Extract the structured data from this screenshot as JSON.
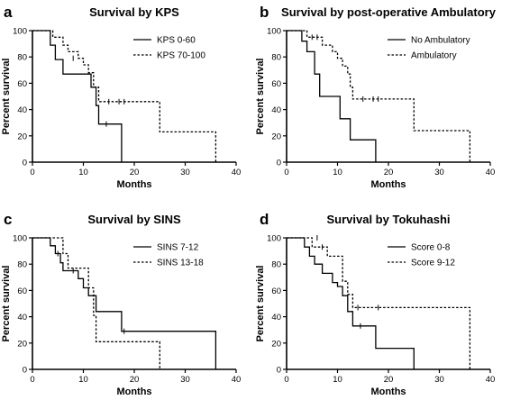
{
  "chart_data": [
    {
      "panel": "a",
      "type": "line",
      "title": "Survival by KPS",
      "xlabel": "Months",
      "ylabel": "Percent survival",
      "xlim": [
        0,
        40
      ],
      "ylim": [
        0,
        100
      ],
      "xticks": [
        0,
        10,
        20,
        30,
        40
      ],
      "yticks": [
        0,
        20,
        40,
        60,
        80,
        100
      ],
      "legend_position": "top-right",
      "series": [
        {
          "name": "KPS 0-60",
          "style": "solid",
          "steps": [
            [
              0,
              100
            ],
            [
              3.5,
              100
            ],
            [
              3.5,
              89
            ],
            [
              4.5,
              89
            ],
            [
              4.5,
              78
            ],
            [
              6,
              78
            ],
            [
              6,
              67
            ],
            [
              11.5,
              67
            ],
            [
              11.5,
              57
            ],
            [
              12.5,
              57
            ],
            [
              12.5,
              43
            ],
            [
              13,
              43
            ],
            [
              13,
              29
            ],
            [
              17.5,
              29
            ],
            [
              17.5,
              0
            ]
          ],
          "censors": [
            [
              14.5,
              29
            ]
          ]
        },
        {
          "name": "KPS 70-100",
          "style": "dashed",
          "steps": [
            [
              0,
              100
            ],
            [
              4,
              100
            ],
            [
              4,
              95
            ],
            [
              6,
              95
            ],
            [
              6,
              89
            ],
            [
              7,
              89
            ],
            [
              7,
              84
            ],
            [
              9,
              84
            ],
            [
              9,
              79
            ],
            [
              10,
              79
            ],
            [
              10,
              74
            ],
            [
              11,
              74
            ],
            [
              11,
              68
            ],
            [
              12,
              68
            ],
            [
              12,
              57
            ],
            [
              13,
              57
            ],
            [
              13,
              46
            ],
            [
              25,
              46
            ],
            [
              25,
              23
            ],
            [
              36,
              23
            ],
            [
              36,
              0
            ]
          ],
          "censors": [
            [
              8,
              79
            ],
            [
              15,
              46
            ],
            [
              17,
              46
            ],
            [
              18,
              46
            ]
          ]
        }
      ]
    },
    {
      "panel": "b",
      "type": "line",
      "title": "Survival by post-operative Ambulatory",
      "xlabel": "Months",
      "ylabel": "Percent survival",
      "xlim": [
        0,
        40
      ],
      "ylim": [
        0,
        100
      ],
      "xticks": [
        0,
        10,
        20,
        30,
        40
      ],
      "yticks": [
        0,
        20,
        40,
        60,
        80,
        100
      ],
      "legend_position": "top-right",
      "series": [
        {
          "name": "No Ambulatory",
          "style": "solid",
          "steps": [
            [
              0,
              100
            ],
            [
              3,
              100
            ],
            [
              3,
              92
            ],
            [
              4,
              92
            ],
            [
              4,
              84
            ],
            [
              5.5,
              84
            ],
            [
              5.5,
              67
            ],
            [
              6.5,
              67
            ],
            [
              6.5,
              50
            ],
            [
              10.5,
              50
            ],
            [
              10.5,
              33
            ],
            [
              12.5,
              33
            ],
            [
              12.5,
              17
            ],
            [
              17.5,
              17
            ],
            [
              17.5,
              0
            ]
          ],
          "censors": []
        },
        {
          "name": "Ambulatory",
          "style": "dashed",
          "steps": [
            [
              0,
              100
            ],
            [
              4,
              100
            ],
            [
              4,
              95
            ],
            [
              7,
              95
            ],
            [
              7,
              89
            ],
            [
              9,
              89
            ],
            [
              9,
              84
            ],
            [
              10,
              84
            ],
            [
              10,
              79
            ],
            [
              11,
              79
            ],
            [
              11,
              73
            ],
            [
              12,
              73
            ],
            [
              12,
              67
            ],
            [
              12.5,
              67
            ],
            [
              12.5,
              57
            ],
            [
              13,
              57
            ],
            [
              13,
              48
            ],
            [
              25,
              48
            ],
            [
              25,
              24
            ],
            [
              36,
              24
            ],
            [
              36,
              0
            ]
          ],
          "censors": [
            [
              5,
              95
            ],
            [
              6,
              95
            ],
            [
              15,
              48
            ],
            [
              17,
              48
            ],
            [
              18,
              48
            ]
          ]
        }
      ]
    },
    {
      "panel": "c",
      "type": "line",
      "title": "Survival by SINS",
      "xlabel": "Months",
      "ylabel": "Percent survival",
      "xlim": [
        0,
        40
      ],
      "ylim": [
        0,
        100
      ],
      "xticks": [
        0,
        10,
        20,
        30,
        40
      ],
      "yticks": [
        0,
        20,
        40,
        60,
        80,
        100
      ],
      "legend_position": "top-right",
      "series": [
        {
          "name": "SINS 7-12",
          "style": "solid",
          "steps": [
            [
              0,
              100
            ],
            [
              3.5,
              100
            ],
            [
              3.5,
              94
            ],
            [
              4.5,
              94
            ],
            [
              4.5,
              88
            ],
            [
              5.5,
              88
            ],
            [
              5.5,
              81
            ],
            [
              6,
              81
            ],
            [
              6,
              75
            ],
            [
              9,
              75
            ],
            [
              9,
              69
            ],
            [
              10,
              69
            ],
            [
              10,
              62
            ],
            [
              11,
              62
            ],
            [
              11,
              56
            ],
            [
              12.5,
              56
            ],
            [
              12.5,
              44
            ],
            [
              17.5,
              44
            ],
            [
              17.5,
              29
            ],
            [
              36,
              29
            ],
            [
              36,
              0
            ]
          ],
          "censors": [
            [
              5,
              88
            ],
            [
              8,
              75
            ],
            [
              18,
              29
            ]
          ]
        },
        {
          "name": "SINS 13-18",
          "style": "dashed",
          "steps": [
            [
              0,
              100
            ],
            [
              6,
              100
            ],
            [
              6,
              88
            ],
            [
              7,
              88
            ],
            [
              7,
              77
            ],
            [
              11,
              77
            ],
            [
              11,
              62
            ],
            [
              12,
              62
            ],
            [
              12,
              41
            ],
            [
              12.5,
              41
            ],
            [
              12.5,
              21
            ],
            [
              25,
              21
            ],
            [
              25,
              0
            ]
          ],
          "censors": []
        }
      ]
    },
    {
      "panel": "d",
      "type": "line",
      "title": "Survival by Tokuhashi",
      "xlabel": "Months",
      "ylabel": "Percent survival",
      "xlim": [
        0,
        40
      ],
      "ylim": [
        0,
        100
      ],
      "xticks": [
        0,
        10,
        20,
        30,
        40
      ],
      "yticks": [
        0,
        20,
        40,
        60,
        80,
        100
      ],
      "legend_position": "top-right",
      "series": [
        {
          "name": "Score 0-8",
          "style": "solid",
          "steps": [
            [
              0,
              100
            ],
            [
              3.5,
              100
            ],
            [
              3.5,
              93
            ],
            [
              4.5,
              93
            ],
            [
              4.5,
              86
            ],
            [
              5.5,
              86
            ],
            [
              5.5,
              80
            ],
            [
              7,
              80
            ],
            [
              7,
              73
            ],
            [
              9,
              73
            ],
            [
              9,
              66
            ],
            [
              10,
              66
            ],
            [
              10,
              63
            ],
            [
              11,
              63
            ],
            [
              11,
              56
            ],
            [
              12,
              56
            ],
            [
              12,
              44
            ],
            [
              13,
              44
            ],
            [
              13,
              33
            ],
            [
              17.5,
              33
            ],
            [
              17.5,
              16
            ],
            [
              25,
              16
            ],
            [
              25,
              0
            ]
          ],
          "censors": [
            [
              14.5,
              33
            ]
          ]
        },
        {
          "name": "Score 9-12",
          "style": "dashed",
          "steps": [
            [
              0,
              100
            ],
            [
              5,
              100
            ],
            [
              5,
              93
            ],
            [
              8,
              93
            ],
            [
              8,
              86
            ],
            [
              11,
              86
            ],
            [
              11,
              67
            ],
            [
              12,
              67
            ],
            [
              12,
              57
            ],
            [
              13,
              57
            ],
            [
              13,
              47
            ],
            [
              36,
              47
            ],
            [
              36,
              0
            ]
          ],
          "censors": [
            [
              6,
              100
            ],
            [
              7,
              93
            ],
            [
              14,
              47
            ],
            [
              18,
              47
            ]
          ]
        }
      ]
    }
  ],
  "legend_line_styles": {
    "solid": "solid",
    "dashed": "dashed"
  }
}
